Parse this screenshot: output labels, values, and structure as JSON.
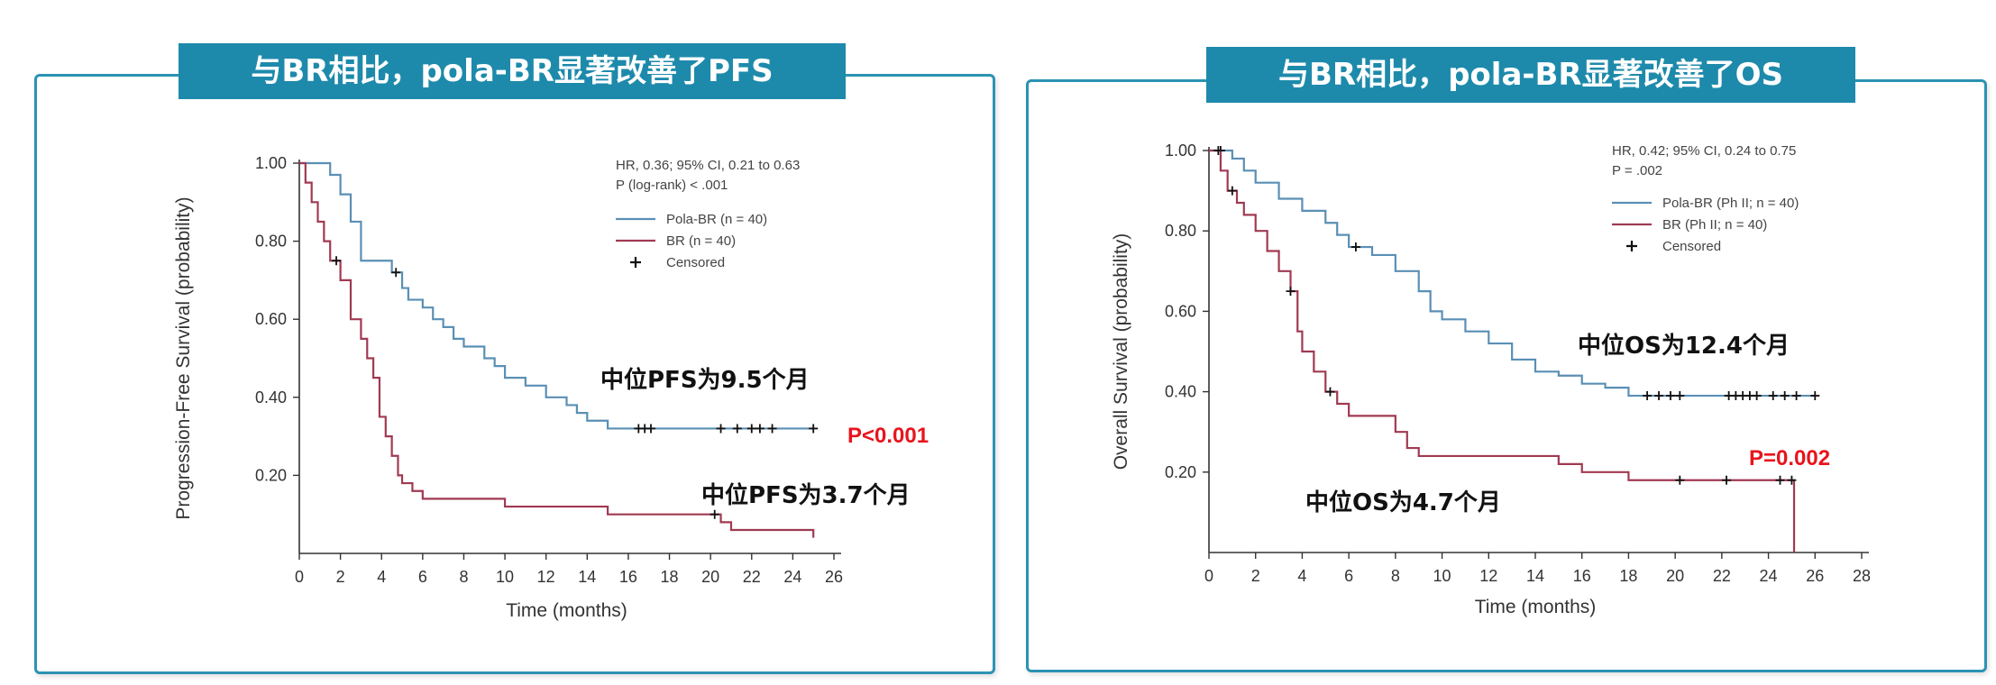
{
  "colors": {
    "accent": "#1e8aab",
    "border": "#2b93b3",
    "pola": "#5a8fb5",
    "br": "#a03a52",
    "pvalue": "#e8141c"
  },
  "panels": [
    {
      "title": "与BR相比，pola-BR显著改善了PFS"
    },
    {
      "title": "与BR相比，pola-BR显著改善了OS"
    }
  ],
  "chart_data": [
    {
      "type": "line",
      "title": "与BR相比，pola-BR显著改善了PFS",
      "xlabel": "Time (months)",
      "ylabel": "Progression-Free Survival (probability)",
      "xlim": [
        0,
        26
      ],
      "ylim": [
        0,
        1.0
      ],
      "xticks": [
        "0",
        "2",
        "4",
        "6",
        "8",
        "10",
        "12",
        "14",
        "16",
        "18",
        "20",
        "22",
        "24",
        "26"
      ],
      "yticks": [
        "0.20",
        "0.40",
        "0.60",
        "0.80",
        "1.00"
      ],
      "stats_text": [
        "HR, 0.36; 95% CI, 0.21 to 0.63",
        "P (log-rank) < .001"
      ],
      "legend": {
        "items": [
          "Pola-BR (n = 40)",
          "BR (n = 40)",
          "Censored"
        ],
        "placement": "top-right"
      },
      "annotations": {
        "median_pola": "中位PFS为9.5个月",
        "median_br": "中位PFS为3.7个月",
        "p_value": "P<0.001"
      },
      "series": [
        {
          "name": "Pola-BR (n = 40)",
          "x": [
            0,
            1.5,
            2,
            2.5,
            3,
            4.5,
            5,
            5.3,
            6,
            6.5,
            7,
            7.5,
            8,
            9,
            9.5,
            10,
            11,
            12,
            13,
            13.5,
            14,
            15,
            25
          ],
          "y": [
            1.0,
            0.97,
            0.92,
            0.85,
            0.75,
            0.72,
            0.68,
            0.65,
            0.63,
            0.6,
            0.58,
            0.55,
            0.53,
            0.5,
            0.48,
            0.45,
            0.43,
            0.4,
            0.38,
            0.36,
            0.34,
            0.32,
            0.32
          ],
          "censored_x": [
            4.7,
            16.5,
            16.8,
            17.1,
            20.5,
            21.3,
            22.0,
            22.4,
            23.0,
            25.0
          ]
        },
        {
          "name": "BR (n = 40)",
          "x": [
            0,
            0.3,
            0.6,
            0.9,
            1.2,
            1.5,
            2,
            2.5,
            3,
            3.3,
            3.6,
            3.9,
            4.2,
            4.5,
            4.8,
            5,
            5.5,
            6,
            10,
            15,
            20.5,
            21,
            25
          ],
          "y": [
            1.0,
            0.95,
            0.9,
            0.85,
            0.8,
            0.75,
            0.7,
            0.6,
            0.55,
            0.5,
            0.45,
            0.35,
            0.3,
            0.25,
            0.2,
            0.18,
            0.16,
            0.14,
            0.12,
            0.1,
            0.08,
            0.06,
            0.04
          ],
          "censored_x": [
            1.8,
            20.2
          ]
        }
      ]
    },
    {
      "type": "line",
      "title": "与BR相比，pola-BR显著改善了OS",
      "xlabel": "Time (months)",
      "ylabel": "Overall Survival (probability)",
      "xlim": [
        0,
        28
      ],
      "ylim": [
        0,
        1.0
      ],
      "xticks": [
        "0",
        "2",
        "4",
        "6",
        "8",
        "10",
        "12",
        "14",
        "16",
        "18",
        "20",
        "22",
        "24",
        "26",
        "28"
      ],
      "yticks": [
        "0.20",
        "0.40",
        "0.60",
        "0.80",
        "1.00"
      ],
      "stats_text": [
        "HR, 0.42; 95% CI, 0.24 to 0.75",
        "P = .002"
      ],
      "legend": {
        "items": [
          "Pola-BR  (Ph II; n = 40)",
          "BR (Ph II; n = 40)",
          "Censored"
        ],
        "placement": "top-right"
      },
      "annotations": {
        "median_pola": "中位OS为12.4个月",
        "median_br": "中位OS为4.7个月",
        "p_value": "P=0.002"
      },
      "series": [
        {
          "name": "Pola-BR  (Ph II; n = 40)",
          "x": [
            0,
            1,
            1.5,
            2,
            3,
            4,
            5,
            5.5,
            6,
            7,
            8,
            9,
            9.5,
            10,
            11,
            12,
            13,
            14,
            15,
            16,
            17,
            18,
            26
          ],
          "y": [
            1.0,
            0.98,
            0.95,
            0.92,
            0.88,
            0.85,
            0.82,
            0.79,
            0.76,
            0.74,
            0.7,
            0.65,
            0.6,
            0.58,
            0.55,
            0.52,
            0.48,
            0.45,
            0.44,
            0.42,
            0.41,
            0.39,
            0.39
          ],
          "censored_x": [
            0.5,
            6.3,
            18.8,
            19.3,
            19.8,
            20.2,
            22.3,
            22.6,
            22.9,
            23.2,
            23.5,
            24.2,
            24.7,
            25.2,
            26.0
          ]
        },
        {
          "name": "BR (Ph II; n = 40)",
          "x": [
            0,
            0.5,
            0.8,
            1.2,
            1.5,
            2,
            2.5,
            3,
            3.5,
            3.8,
            4,
            4.5,
            5,
            5.5,
            6,
            8,
            8.5,
            9,
            15,
            16,
            18,
            25,
            25.1
          ],
          "y": [
            1.0,
            0.95,
            0.9,
            0.87,
            0.84,
            0.8,
            0.75,
            0.7,
            0.65,
            0.55,
            0.5,
            0.45,
            0.4,
            0.37,
            0.34,
            0.3,
            0.26,
            0.24,
            0.22,
            0.2,
            0.18,
            0.18,
            0.0
          ],
          "censored_x": [
            0.4,
            1.0,
            3.5,
            5.2,
            20.2,
            22.2,
            24.5,
            25.0
          ]
        }
      ]
    }
  ]
}
